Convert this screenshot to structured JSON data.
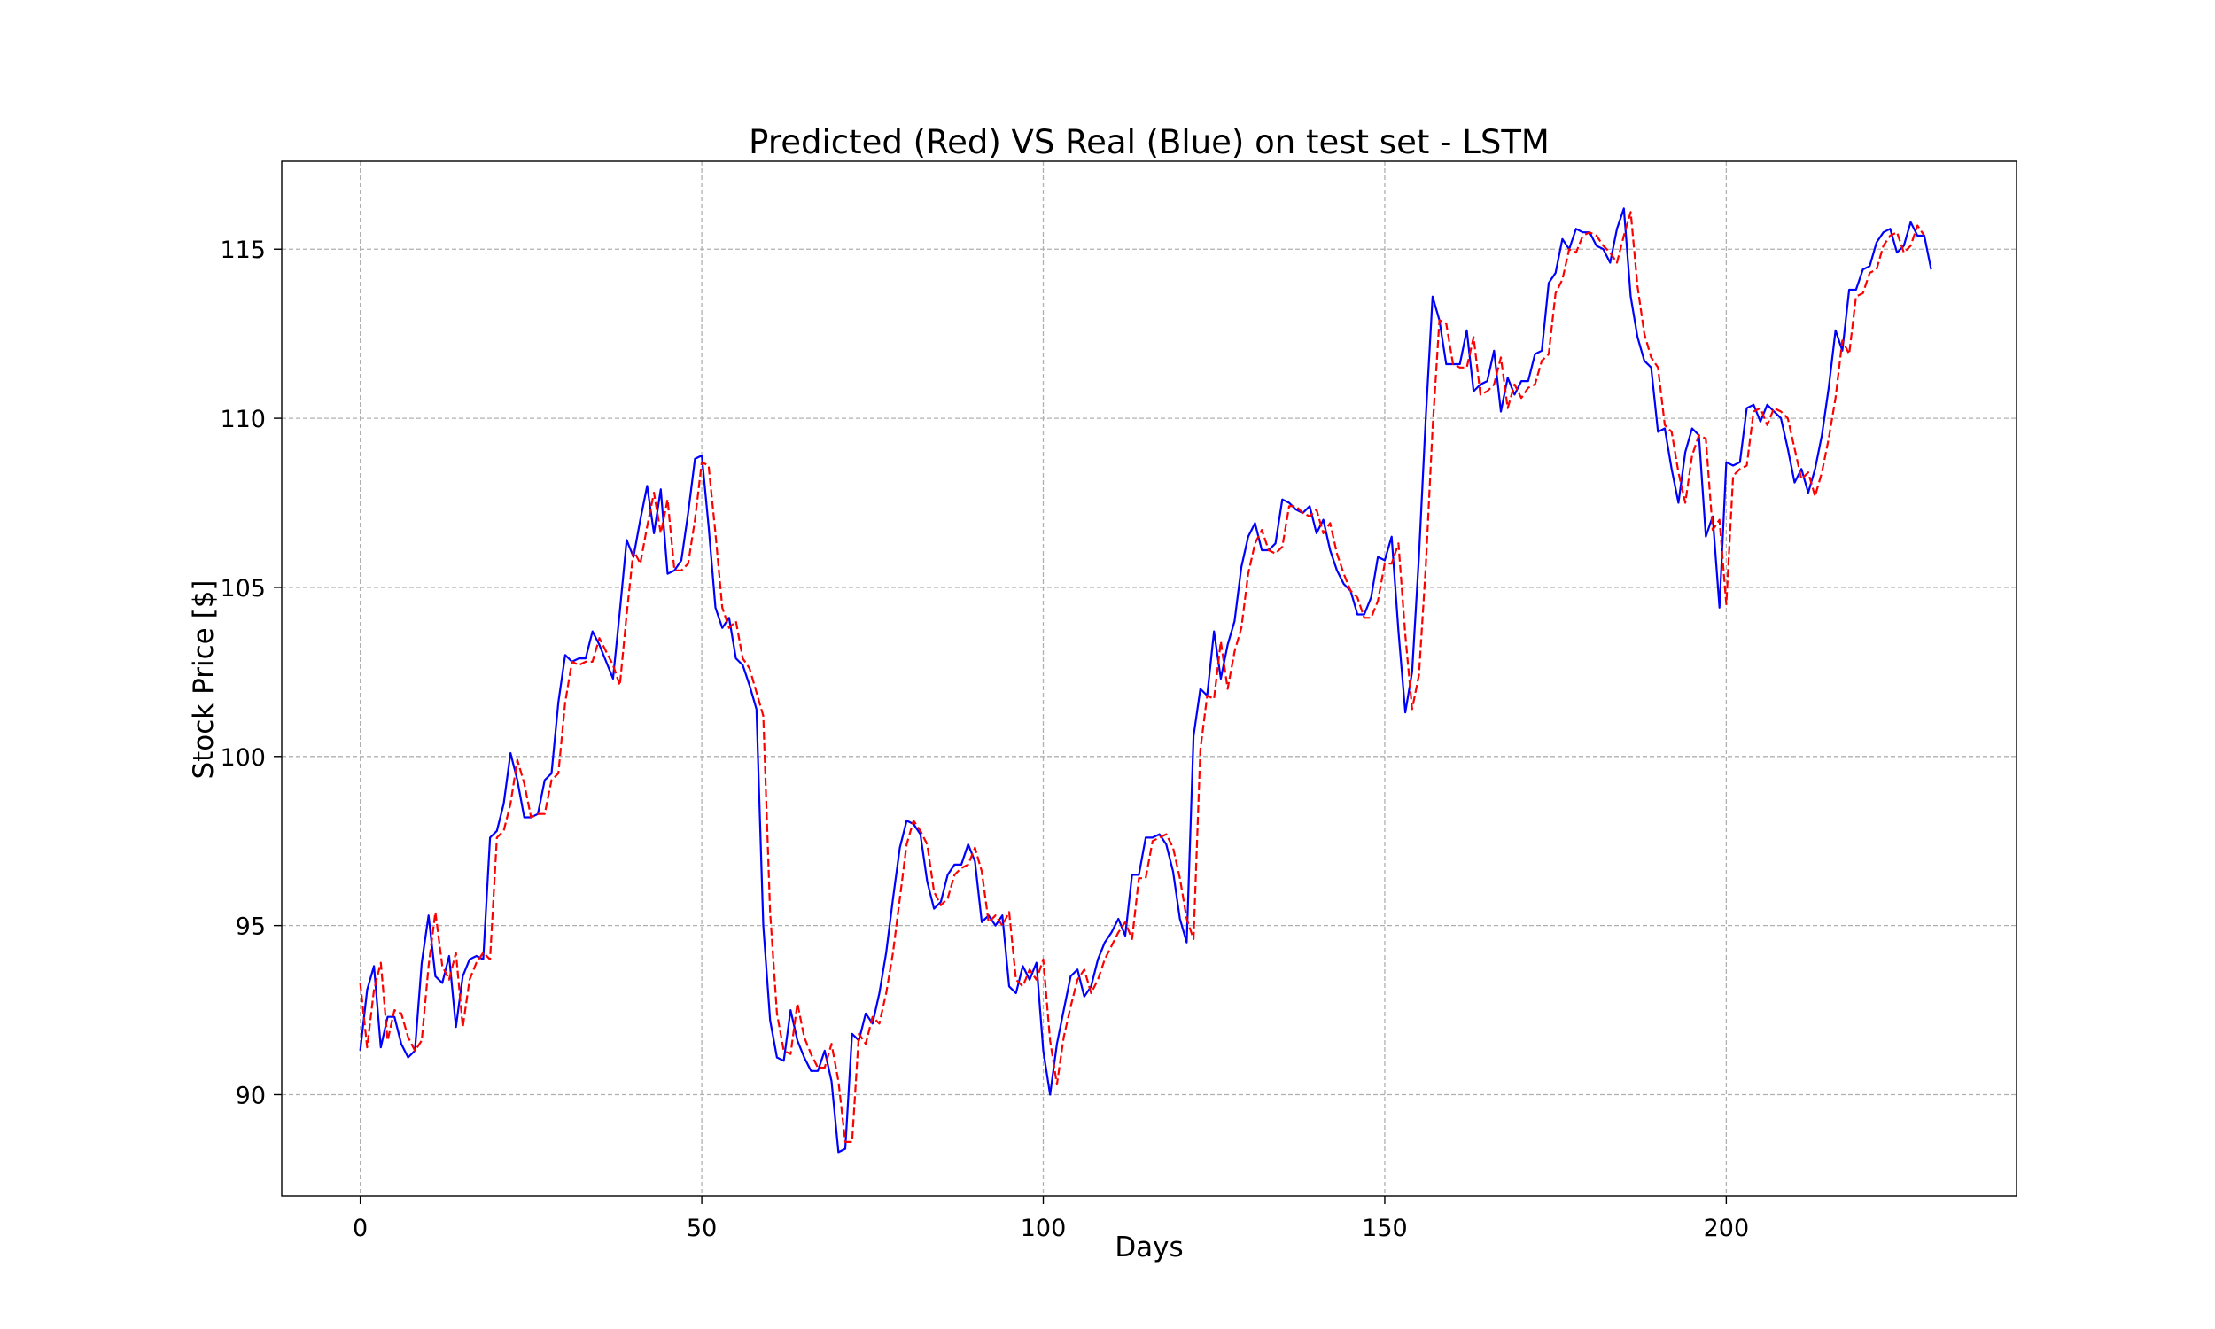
{
  "chart_data": {
    "type": "line",
    "title": "Predicted (Red) VS Real (Blue) on test set - LSTM",
    "xlabel": "Days",
    "ylabel": "Stock Price [$]",
    "xlim": [
      -11.5,
      242.5
    ],
    "ylim": [
      87.0,
      117.6
    ],
    "xticks": [
      0,
      50,
      100,
      150,
      200
    ],
    "yticks": [
      90,
      95,
      100,
      105,
      110,
      115
    ],
    "grid": true,
    "legend": "none",
    "series": [
      {
        "color": "#0000ff",
        "dash": "solid",
        "values": [
          91.3,
          93.1,
          93.8,
          91.4,
          92.3,
          92.3,
          91.5,
          91.1,
          91.3,
          93.9,
          95.3,
          93.5,
          93.3,
          94.1,
          92.0,
          93.5,
          94.0,
          94.1,
          94.0,
          97.6,
          97.8,
          98.6,
          100.1,
          99.3,
          98.2,
          98.2,
          98.3,
          99.3,
          99.5,
          101.6,
          103.0,
          102.8,
          102.9,
          102.9,
          103.7,
          103.3,
          102.8,
          102.3,
          104.3,
          106.4,
          105.9,
          107.0,
          108.0,
          106.6,
          107.9,
          105.4,
          105.5,
          105.8,
          107.2,
          108.8,
          108.9,
          106.8,
          104.4,
          103.8,
          104.1,
          102.9,
          102.7,
          102.1,
          101.4,
          95.0,
          92.2,
          91.1,
          91.0,
          92.5,
          91.6,
          91.1,
          90.7,
          90.7,
          91.3,
          90.4,
          88.3,
          88.4,
          91.8,
          91.6,
          92.4,
          92.1,
          93.0,
          94.2,
          95.8,
          97.3,
          98.1,
          98.0,
          97.7,
          96.3,
          95.5,
          95.7,
          96.5,
          96.8,
          96.8,
          97.4,
          96.9,
          95.1,
          95.3,
          95.0,
          95.3,
          93.2,
          93.0,
          93.8,
          93.4,
          93.9,
          91.3,
          90.0,
          91.5,
          92.5,
          93.5,
          93.7,
          92.9,
          93.2,
          94.0,
          94.5,
          94.8,
          95.2,
          94.7,
          96.5,
          96.5,
          97.6,
          97.6,
          97.7,
          97.4,
          96.6,
          95.2,
          94.5,
          100.6,
          102.0,
          101.8,
          103.7,
          102.3,
          103.3,
          104.0,
          105.6,
          106.5,
          106.9,
          106.1,
          106.1,
          106.3,
          107.6,
          107.5,
          107.3,
          107.2,
          107.4,
          106.6,
          107.0,
          106.1,
          105.5,
          105.1,
          104.9,
          104.2,
          104.2,
          104.7,
          105.9,
          105.8,
          106.5,
          103.7,
          101.3,
          102.5,
          105.9,
          110.0,
          113.6,
          112.9,
          111.6,
          111.6,
          111.6,
          112.6,
          110.8,
          111.0,
          111.1,
          112.0,
          110.2,
          111.2,
          110.7,
          111.1,
          111.1,
          111.9,
          112.0,
          114.0,
          114.3,
          115.3,
          115.0,
          115.6,
          115.5,
          115.5,
          115.1,
          115.0,
          114.6,
          115.6,
          116.2,
          113.6,
          112.4,
          111.7,
          111.5,
          109.6,
          109.7,
          108.5,
          107.5,
          109.0,
          109.7,
          109.5,
          106.5,
          107.1,
          104.4,
          108.7,
          108.6,
          108.7,
          110.3,
          110.4,
          109.9,
          110.4,
          110.2,
          110.0,
          109.1,
          108.1,
          108.5,
          107.8,
          108.5,
          109.5,
          110.9,
          112.6,
          112.0,
          113.8,
          113.8,
          114.4,
          114.5,
          115.2,
          115.5,
          115.6,
          114.9,
          115.1,
          115.8,
          115.4,
          115.4,
          114.4
        ]
      },
      {
        "color": "#ff0000",
        "dash": "dashed",
        "values": [
          93.3,
          91.4,
          93.1,
          93.9,
          91.6,
          92.5,
          92.4,
          91.7,
          91.3,
          91.6,
          93.8,
          95.4,
          93.8,
          93.4,
          94.2,
          92.0,
          93.4,
          93.9,
          94.2,
          94.0,
          97.6,
          97.8,
          98.6,
          99.9,
          99.2,
          98.2,
          98.3,
          98.3,
          99.3,
          99.5,
          101.6,
          102.8,
          102.7,
          102.8,
          102.8,
          103.5,
          103.1,
          102.7,
          102.1,
          104.2,
          106.1,
          105.7,
          106.8,
          107.8,
          106.6,
          107.6,
          105.5,
          105.5,
          105.7,
          107.0,
          108.7,
          108.6,
          106.6,
          104.4,
          103.8,
          104.0,
          102.9,
          102.6,
          101.9,
          101.2,
          95.4,
          92.4,
          91.3,
          91.2,
          92.7,
          91.7,
          91.2,
          90.8,
          90.8,
          91.5,
          90.4,
          88.6,
          88.6,
          91.8,
          91.5,
          92.3,
          92.1,
          93.0,
          94.2,
          95.8,
          97.4,
          98.1,
          97.8,
          97.4,
          96.0,
          95.6,
          95.8,
          96.5,
          96.7,
          96.8,
          97.3,
          96.6,
          95.1,
          95.3,
          95.0,
          95.4,
          93.4,
          93.2,
          93.7,
          93.4,
          94.0,
          91.6,
          90.3,
          91.7,
          92.6,
          93.4,
          93.7,
          93.0,
          93.4,
          94.0,
          94.4,
          94.8,
          95.1,
          94.6,
          96.4,
          96.4,
          97.5,
          97.6,
          97.7,
          97.3,
          96.4,
          95.2,
          94.6,
          100.2,
          101.8,
          101.7,
          103.4,
          102.0,
          103.1,
          103.8,
          105.4,
          106.3,
          106.7,
          106.1,
          106.0,
          106.2,
          107.4,
          107.4,
          107.2,
          107.1,
          107.3,
          106.6,
          106.9,
          106.0,
          105.4,
          104.9,
          104.7,
          104.1,
          104.1,
          104.6,
          105.7,
          105.7,
          106.3,
          103.6,
          101.4,
          102.4,
          105.6,
          109.7,
          112.9,
          112.8,
          111.6,
          111.5,
          111.5,
          112.4,
          110.7,
          110.8,
          111.0,
          111.8,
          110.3,
          111.0,
          110.6,
          110.9,
          111.0,
          111.7,
          111.9,
          113.7,
          114.1,
          115.0,
          114.9,
          115.4,
          115.5,
          115.4,
          115.1,
          114.9,
          114.6,
          115.4,
          116.1,
          113.9,
          112.5,
          111.8,
          111.5,
          109.8,
          109.6,
          108.4,
          107.5,
          108.9,
          109.5,
          109.4,
          106.7,
          107.0,
          104.5,
          108.3,
          108.5,
          108.6,
          110.2,
          110.3,
          109.8,
          110.3,
          110.2,
          110.0,
          109.1,
          108.2,
          108.4,
          107.7,
          108.4,
          109.4,
          110.6,
          112.3,
          111.9,
          113.6,
          113.7,
          114.3,
          114.4,
          115.1,
          115.4,
          115.5,
          114.9,
          115.1,
          115.7,
          115.4
        ]
      }
    ]
  }
}
